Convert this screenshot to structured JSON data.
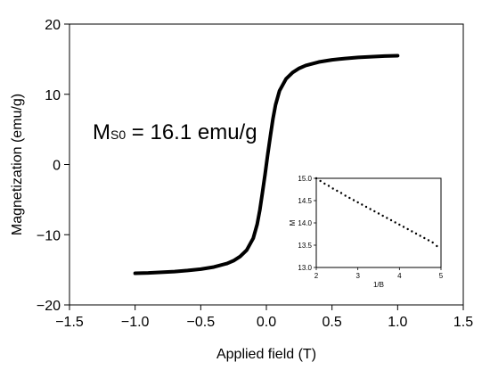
{
  "chart_data": [
    {
      "type": "line",
      "xlabel": "Applied field (T)",
      "ylabel": "Magnetization (emu/g)",
      "xlim": [
        -1.5,
        1.5
      ],
      "ylim": [
        -20,
        20
      ],
      "xticks": [
        "-1.5",
        "-1.0",
        "-0.5",
        "0.0",
        "0.5",
        "1.0",
        "1.5"
      ],
      "yticks": [
        "-20",
        "-10",
        "0",
        "10",
        "20"
      ],
      "annotation": {
        "main": "M",
        "sub": "S0",
        "rest": " = 16.1 emu/g"
      },
      "series": [
        {
          "x": [
            -1.0,
            -0.9,
            -0.8,
            -0.7,
            -0.6,
            -0.5,
            -0.4,
            -0.3,
            -0.25,
            -0.2,
            -0.15,
            -0.1,
            -0.07,
            -0.05,
            -0.03,
            -0.02,
            -0.01,
            0.0,
            0.01,
            0.02,
            0.03,
            0.05,
            0.07,
            0.1,
            0.15,
            0.2,
            0.25,
            0.3,
            0.4,
            0.5,
            0.6,
            0.7,
            0.8,
            0.9,
            1.0
          ],
          "y": [
            -15.5,
            -15.45,
            -15.35,
            -15.25,
            -15.1,
            -14.9,
            -14.6,
            -14.1,
            -13.7,
            -13.1,
            -12.2,
            -10.5,
            -8.5,
            -6.5,
            -4.0,
            -2.7,
            -1.4,
            0.0,
            1.4,
            2.7,
            4.0,
            6.5,
            8.5,
            10.5,
            12.2,
            13.1,
            13.7,
            14.1,
            14.6,
            14.9,
            15.1,
            15.25,
            15.35,
            15.45,
            15.5
          ]
        }
      ]
    },
    {
      "type": "scatter",
      "xlabel": "1/B",
      "ylabel": "M",
      "xlim": [
        2,
        5
      ],
      "ylim": [
        13.0,
        15.0
      ],
      "xticks": [
        "2",
        "3",
        "4",
        "5"
      ],
      "yticks": [
        "13.0",
        "13.5",
        "14.0",
        "14.5",
        "15.0"
      ],
      "series": [
        {
          "x": [
            2.0,
            2.1,
            2.2,
            2.3,
            2.4,
            2.5,
            2.6,
            2.7,
            2.8,
            2.9,
            3.0,
            3.1,
            3.2,
            3.3,
            3.4,
            3.5,
            3.6,
            3.7,
            3.8,
            3.9,
            4.0,
            4.1,
            4.2,
            4.3,
            4.4,
            4.5,
            4.6,
            4.7,
            4.8,
            4.9
          ],
          "y": [
            15.0,
            14.94,
            14.88,
            14.83,
            14.77,
            14.72,
            14.67,
            14.61,
            14.56,
            14.51,
            14.46,
            14.41,
            14.36,
            14.31,
            14.26,
            14.21,
            14.16,
            14.11,
            14.06,
            14.01,
            13.96,
            13.91,
            13.86,
            13.81,
            13.76,
            13.71,
            13.66,
            13.61,
            13.56,
            13.48
          ]
        }
      ]
    }
  ]
}
